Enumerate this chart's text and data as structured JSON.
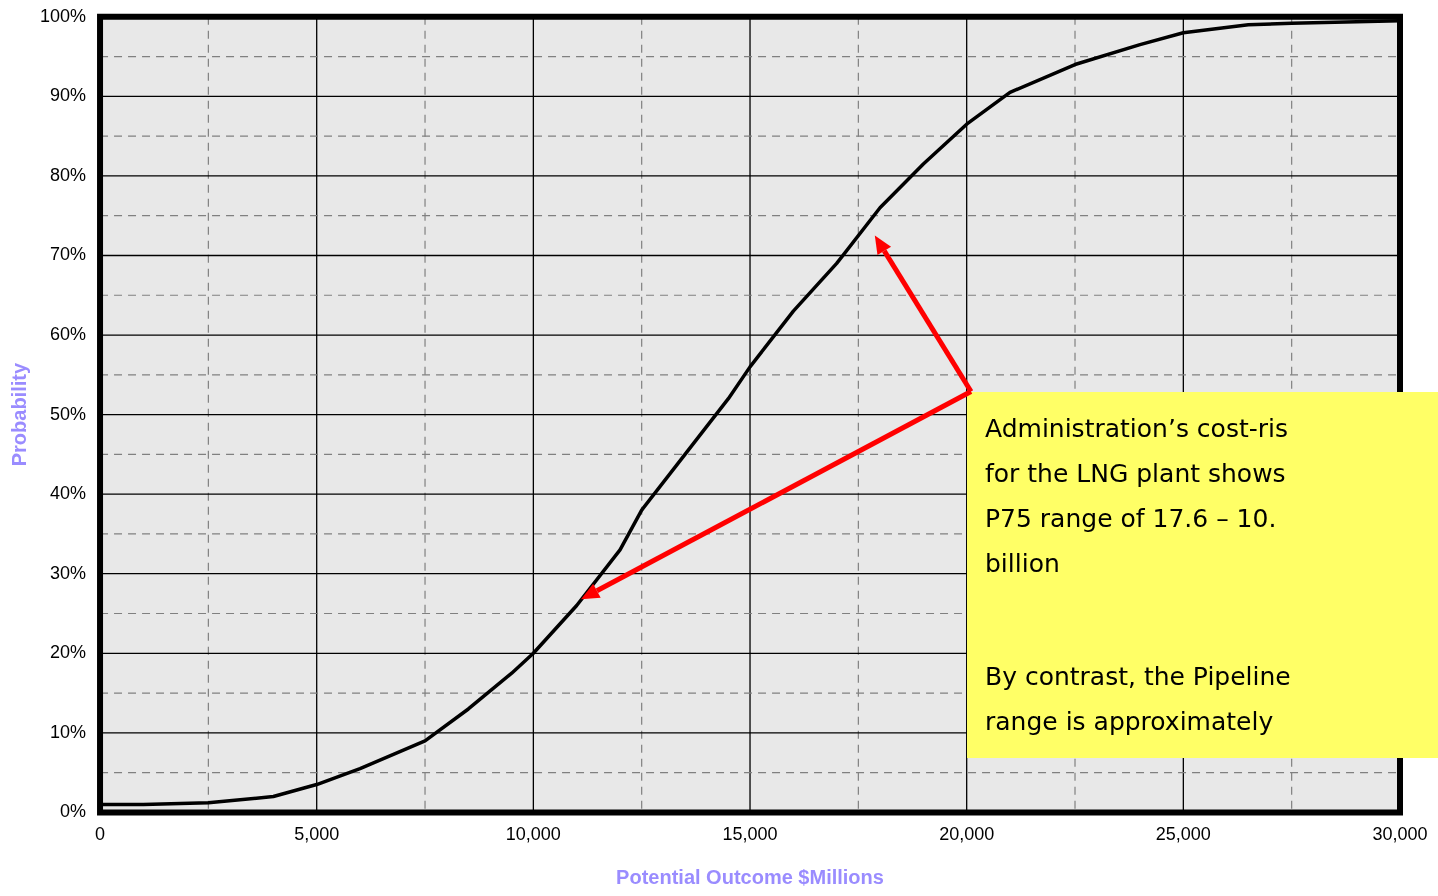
{
  "chart_data": {
    "type": "line",
    "xlabel": "Potential Outcome $Millions",
    "ylabel": "Probability",
    "x": [
      0,
      1000,
      2500,
      4000,
      5000,
      6000,
      7500,
      8500,
      9500,
      10000,
      11000,
      12000,
      12500,
      13500,
      14500,
      15000,
      16000,
      17000,
      18000,
      19000,
      20000,
      21000,
      22500,
      24000,
      25000,
      26500,
      27500,
      30000
    ],
    "series": [
      {
        "color": "#000000",
        "values": [
          1,
          1,
          1.2,
          2,
          3.5,
          5.5,
          9,
          13,
          17.5,
          20,
          26,
          33,
          38,
          45,
          52,
          56,
          63,
          69,
          76,
          81.5,
          86.5,
          90.5,
          94,
          96.5,
          98,
          99,
          99.2,
          99.5
        ]
      }
    ],
    "xlim": [
      0,
      30000
    ],
    "ylim": [
      0,
      100
    ],
    "xticks": [
      0,
      {
        "value": 2500,
        "label": null
      },
      {
        "value": 5000,
        "label": "5,000"
      },
      {
        "value": 7500,
        "label": null
      },
      {
        "value": 10000,
        "label": "10,000"
      },
      {
        "value": 12500,
        "label": null
      },
      {
        "value": 15000,
        "label": "15,000"
      },
      {
        "value": 17500,
        "label": null
      },
      {
        "value": 20000,
        "label": "20,000"
      },
      {
        "value": 22500,
        "label": null
      },
      {
        "value": 25000,
        "label": "25,000"
      },
      {
        "value": 27500,
        "label": null
      },
      {
        "value": 30000,
        "label": "30,000"
      }
    ],
    "yticks": [
      {
        "value": 0,
        "label": "0%"
      },
      {
        "value": 5,
        "label": null
      },
      {
        "value": 10,
        "label": "10%"
      },
      {
        "value": 15,
        "label": null
      },
      {
        "value": 20,
        "label": "20%"
      },
      {
        "value": 25,
        "label": null
      },
      {
        "value": 30,
        "label": "30%"
      },
      {
        "value": 35,
        "label": null
      },
      {
        "value": 40,
        "label": "40%"
      },
      {
        "value": 45,
        "label": null
      },
      {
        "value": 50,
        "label": "50%"
      },
      {
        "value": 55,
        "label": null
      },
      {
        "value": 60,
        "label": "60%"
      },
      {
        "value": 65,
        "label": null
      },
      {
        "value": 70,
        "label": "70%"
      },
      {
        "value": 75,
        "label": null
      },
      {
        "value": 80,
        "label": "80%"
      },
      {
        "value": 85,
        "label": null
      },
      {
        "value": 90,
        "label": "90%"
      },
      {
        "value": 95,
        "label": null
      },
      {
        "value": 100,
        "label": "100%"
      }
    ],
    "grid": true,
    "marker": "none",
    "line_style": "solid",
    "annotations": [
      "Administration’s cost-ris\nfor the LNG plant shows\nP75 range of 17.6 – 10.\nbillion",
      "By contrast, the Pipeline\nrange is approximately"
    ]
  }
}
